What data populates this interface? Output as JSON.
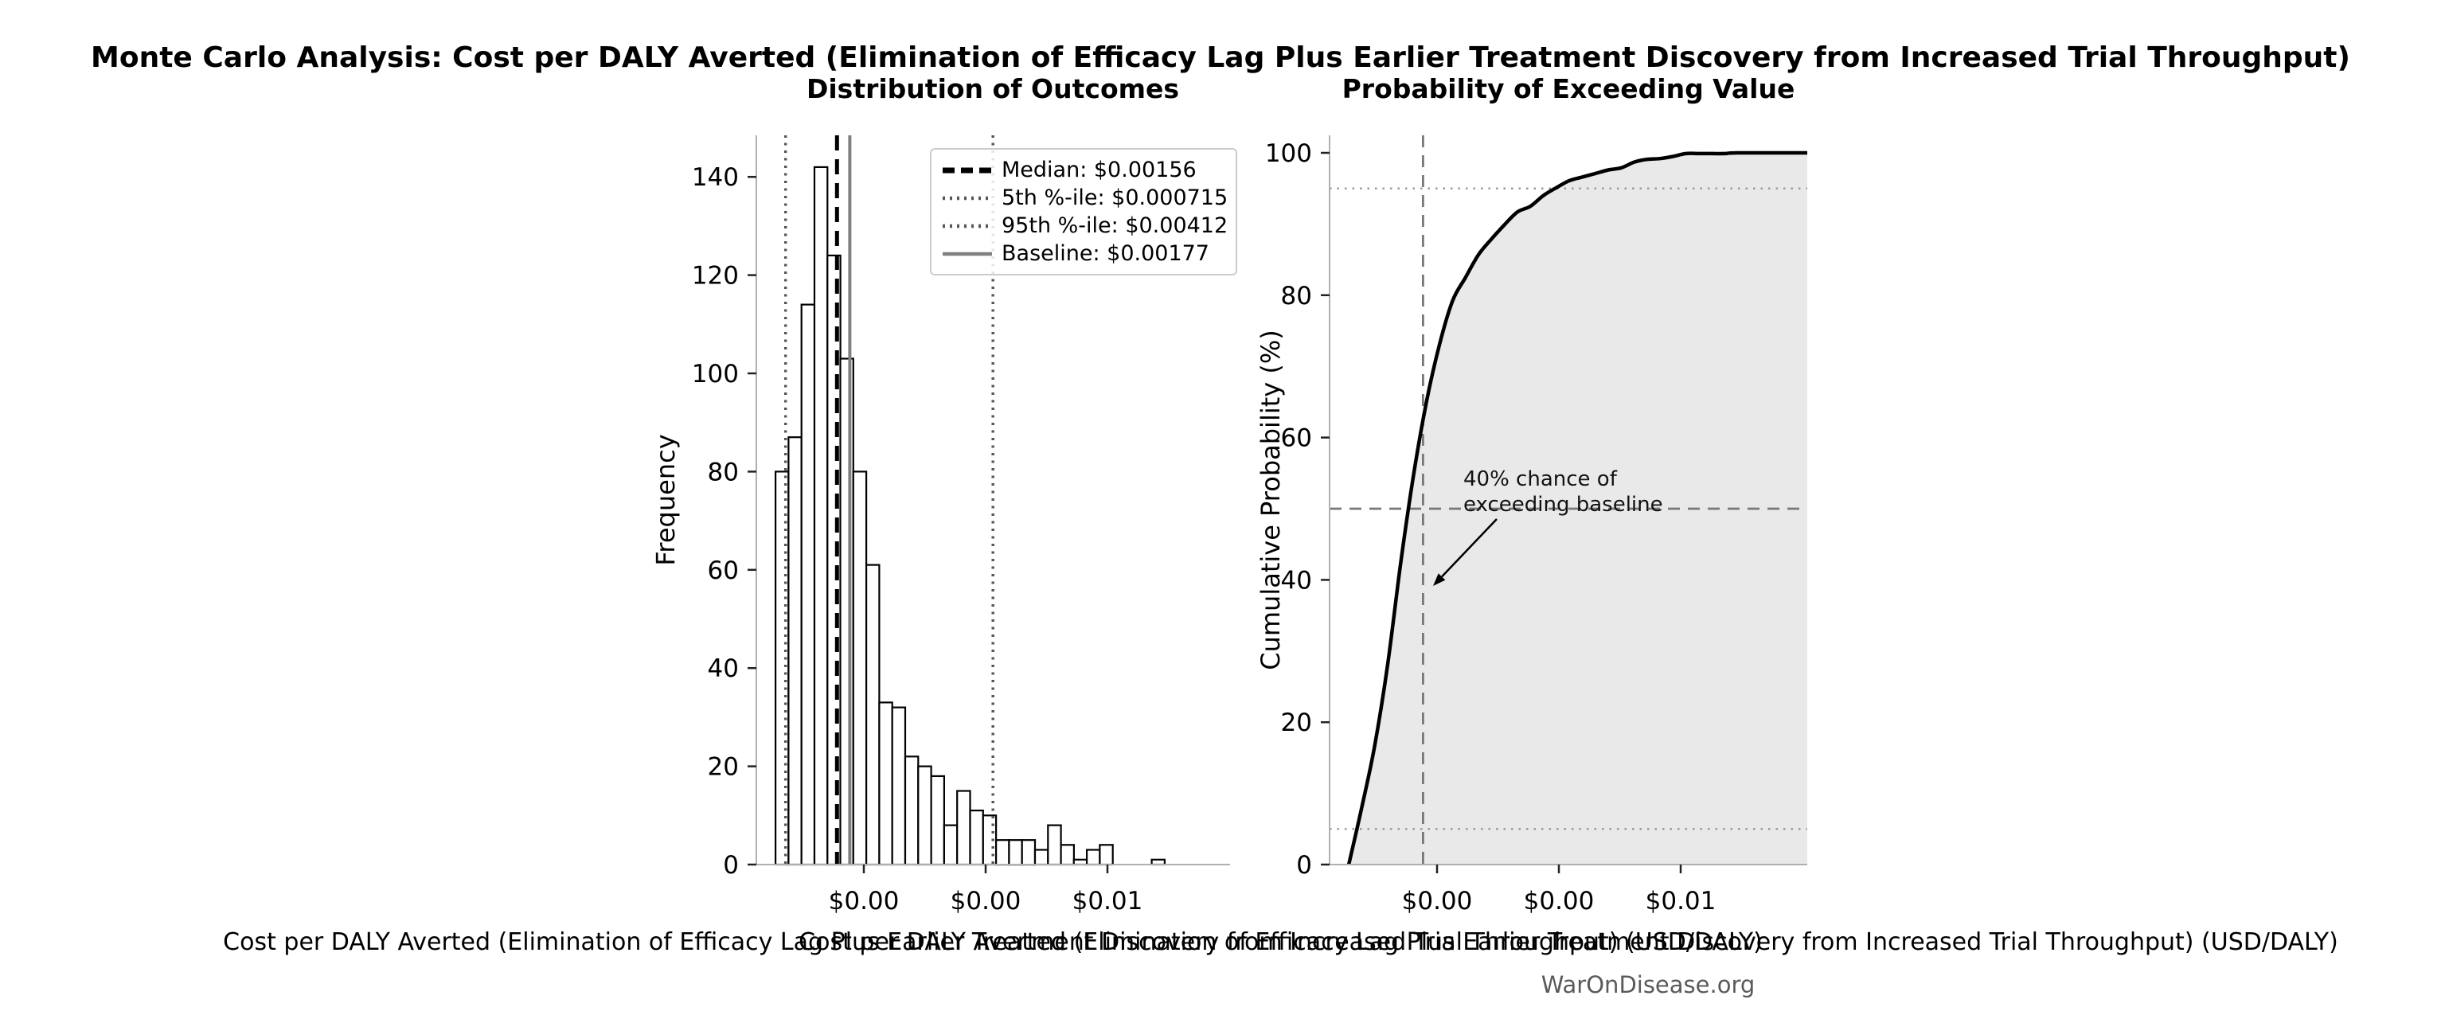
{
  "figure": {
    "title": "Monte Carlo Analysis: Cost per DALY Averted (Elimination of Efficacy Lag Plus Earlier Treatment Discovery from Increased Trial Throughput)",
    "watermark": "WarOnDisease.org",
    "background_color": "#ffffff"
  },
  "left_plot": {
    "legend_items": [
      {
        "label": "Median: $0.00156",
        "style": "dashed",
        "color": "#000000"
      },
      {
        "label": "5th %-ile: $0.000715",
        "style": "dotted",
        "color": "#555555"
      },
      {
        "label": "95th %-ile: $0.00412",
        "style": "dotted",
        "color": "#555555"
      },
      {
        "label": "Baseline: $0.00177",
        "style": "solid",
        "color": "#808080"
      }
    ]
  },
  "right_plot": {
    "annotation_line1": "40% chance of",
    "annotation_line2": "exceeding baseline"
  },
  "chart_data": [
    {
      "type": "bar",
      "subtype": "histogram",
      "title": "Distribution of Outcomes",
      "xlabel": "Cost per DALY Averted (Elimination of Efficacy Lag Plus Earlier Treatment Discovery from Increased Trial Throughput) (USD/DALY)",
      "ylabel": "Frequency",
      "bin_start_usd": 0.00055,
      "bin_width_usd": 0.000213,
      "counts": [
        80,
        87,
        114,
        142,
        124,
        103,
        80,
        61,
        33,
        32,
        22,
        20,
        18,
        8,
        15,
        11,
        10,
        5,
        5,
        5,
        3,
        8,
        4,
        1,
        3,
        4,
        0,
        0,
        0,
        1
      ],
      "bar_fill": "#ffffff",
      "bar_edge": "#000000",
      "xticks_usd": [
        0.002,
        0.004,
        0.006
      ],
      "xtick_labels": [
        "$0.00",
        "$0.00",
        "$0.01"
      ],
      "yticks": [
        0,
        20,
        40,
        60,
        80,
        100,
        120,
        140
      ],
      "ylim": [
        0,
        148.5
      ],
      "xlim_usd": [
        0.00024,
        0.00801
      ],
      "grid": false,
      "legend_position": "upper right",
      "stat_lines": {
        "median_usd": 0.00156,
        "p5_usd": 0.000715,
        "p95_usd": 0.00412,
        "baseline_usd": 0.00177
      }
    },
    {
      "type": "line",
      "subtype": "cdf",
      "title": "Probability of Exceeding Value",
      "xlabel": "Cost per DALY Averted (Elimination of Efficacy Lag Plus Earlier Treatment Discovery from Increased Trial Throughput) (USD/DALY)",
      "ylabel": "Cumulative Probability (%)",
      "curve_source": "cumulative_percent_of_histogram_counts",
      "line_color": "#000000",
      "fill_under_curve": true,
      "fill_color": "#e9e9e9",
      "xticks_usd": [
        0.002,
        0.004,
        0.006
      ],
      "xtick_labels": [
        "$0.00",
        "$0.00",
        "$0.01"
      ],
      "yticks": [
        0,
        20,
        40,
        60,
        80,
        100
      ],
      "ylim": [
        0,
        102.5
      ],
      "xlim_usd": [
        0.00024,
        0.00808
      ],
      "grid": false,
      "reference_lines": {
        "crosshair_x_usd": 0.00177,
        "crosshair_y_pct": 50,
        "dotted_levels_pct": [
          5,
          95
        ]
      },
      "annotation": {
        "text": "40% chance of exceeding baseline",
        "arrow_points_to_pct": 40
      }
    }
  ]
}
